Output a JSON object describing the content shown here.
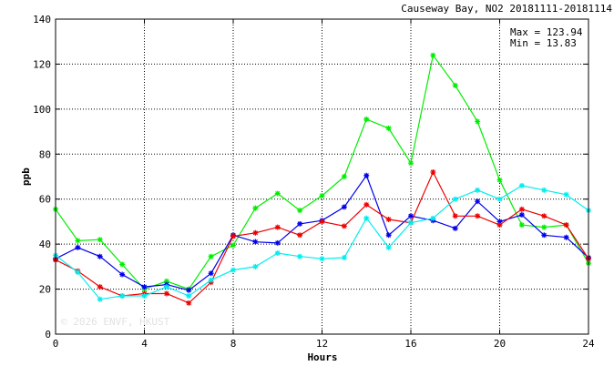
{
  "chart_data": {
    "type": "line",
    "title": "Causeway Bay, NO2 20181111-20181114",
    "xlabel": "Hours",
    "ylabel": "ppb",
    "xlim": [
      0,
      24
    ],
    "ylim": [
      0,
      140
    ],
    "xticks": [
      0,
      4,
      8,
      12,
      16,
      20,
      24
    ],
    "yticks": [
      0,
      20,
      40,
      60,
      80,
      100,
      120,
      140
    ],
    "grid": true,
    "stats": {
      "max_line": "Max = 123.94",
      "min_line": "Min =  13.83"
    },
    "watermark": "© 2026  ENVF, HKUST",
    "x": [
      0,
      1,
      2,
      3,
      4,
      5,
      6,
      7,
      8,
      9,
      10,
      11,
      12,
      13,
      14,
      15,
      16,
      17,
      18,
      19,
      20,
      21,
      22,
      23,
      24
    ],
    "series": [
      {
        "color": "#00ee00",
        "values": [
          55.5,
          41.5,
          42,
          31,
          20,
          23.5,
          20,
          34.5,
          39.5,
          56,
          62.5,
          55,
          61.5,
          70,
          95.5,
          91.5,
          76,
          123.94,
          110.5,
          94.5,
          68.5,
          48.5,
          47.5,
          48.5,
          31.5
        ]
      },
      {
        "color": "#0000ee",
        "values": [
          33.5,
          38.5,
          34.5,
          26.5,
          21,
          22,
          19.5,
          27,
          44,
          41,
          40.5,
          49,
          50.5,
          56.5,
          70.5,
          44,
          52.5,
          50.5,
          47,
          59,
          50,
          53,
          44,
          43,
          34
        ]
      },
      {
        "color": "#ee0000",
        "values": [
          33,
          28,
          21,
          17,
          18,
          18,
          13.83,
          23,
          43.5,
          45,
          47.5,
          44,
          50,
          48,
          57.5,
          51,
          49.5,
          72,
          52.5,
          52.5,
          48.5,
          55.5,
          52.5,
          48.5,
          33.5
        ]
      },
      {
        "color": "#00eeee",
        "values": [
          35,
          27.5,
          15.5,
          17,
          17,
          21,
          17,
          24,
          28.5,
          30,
          36,
          34.5,
          33.5,
          34,
          51.5,
          38.5,
          49.5,
          51.5,
          60,
          64,
          60,
          66,
          64,
          62,
          55
        ]
      }
    ]
  }
}
